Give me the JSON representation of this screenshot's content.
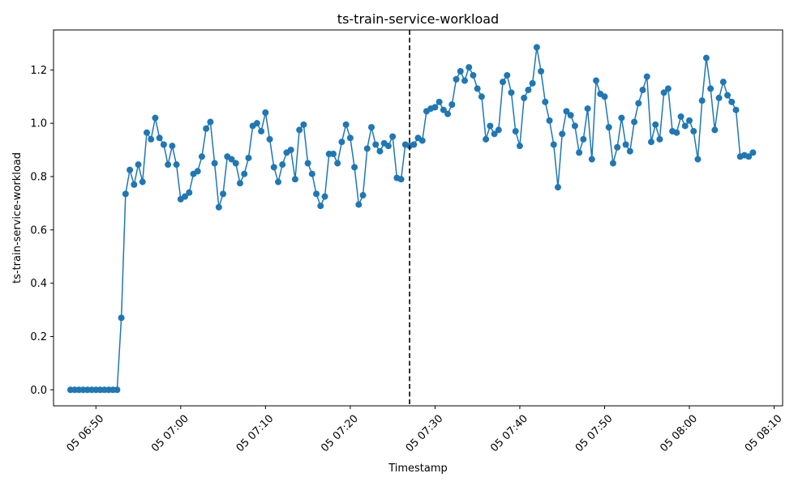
{
  "chart_data": {
    "type": "line",
    "title": "ts-train-service-workload",
    "xlabel": "Timestamp",
    "ylabel": "ts-train-service-workload",
    "x_start": "05 06:47",
    "x_step_minutes": 0.5,
    "xlim": [
      "05 06:45",
      "05 08:11"
    ],
    "ylim": [
      -0.06,
      1.35
    ],
    "yticks": [
      0.0,
      0.2,
      0.4,
      0.6,
      0.8,
      1.0,
      1.2
    ],
    "ytick_labels": [
      "0.0",
      "0.2",
      "0.4",
      "0.6",
      "0.8",
      "1.0",
      "1.2"
    ],
    "xticks": [
      "05 06:50",
      "05 07:00",
      "05 07:10",
      "05 07:20",
      "05 07:30",
      "05 07:40",
      "05 07:50",
      "05 08:00",
      "05 08:10"
    ],
    "xtick_labels": [
      "05 06:50",
      "05 07:00",
      "05 07:10",
      "05 07:20",
      "05 07:30",
      "05 07:40",
      "05 07:50",
      "05 08:00",
      "05 08:10"
    ],
    "vline": "05 07:27",
    "series": [
      {
        "name": "",
        "color": "#1f77b4",
        "marker": "circle",
        "values": [
          0,
          0,
          0,
          0,
          0,
          0,
          0,
          0,
          0,
          0,
          0,
          0,
          0.27,
          0.735,
          0.825,
          0.77,
          0.845,
          0.78,
          0.965,
          0.94,
          1.02,
          0.945,
          0.92,
          0.845,
          0.915,
          0.845,
          0.715,
          0.725,
          0.74,
          0.81,
          0.82,
          0.875,
          0.98,
          1.005,
          0.85,
          0.685,
          0.735,
          0.875,
          0.865,
          0.85,
          0.775,
          0.81,
          0.87,
          0.99,
          1.0,
          0.97,
          1.04,
          0.94,
          0.835,
          0.78,
          0.845,
          0.89,
          0.9,
          0.79,
          0.975,
          0.995,
          0.85,
          0.81,
          0.735,
          0.69,
          0.725,
          0.885,
          0.885,
          0.85,
          0.93,
          0.995,
          0.945,
          0.835,
          0.695,
          0.73,
          0.905,
          0.985,
          0.92,
          0.895,
          0.925,
          0.915,
          0.95,
          0.795,
          0.79,
          0.92,
          0.915,
          0.92,
          0.945,
          0.935,
          1.045,
          1.055,
          1.06,
          1.08,
          1.05,
          1.035,
          1.07,
          1.165,
          1.195,
          1.16,
          1.21,
          1.18,
          1.13,
          1.1,
          0.94,
          0.99,
          0.96,
          0.975,
          1.155,
          1.18,
          1.115,
          0.97,
          0.915,
          1.095,
          1.125,
          1.15,
          1.285,
          1.195,
          1.08,
          1.01,
          0.92,
          0.76,
          0.96,
          1.045,
          1.03,
          0.99,
          0.89,
          0.94,
          1.055,
          0.865,
          1.16,
          1.11,
          1.1,
          0.985,
          0.85,
          0.91,
          1.02,
          0.92,
          0.895,
          1.005,
          1.075,
          1.125,
          1.175,
          0.93,
          0.995,
          0.94,
          1.115,
          1.13,
          0.97,
          0.965,
          1.025,
          0.99,
          1.01,
          0.97,
          0.865,
          1.085,
          1.245,
          1.13,
          0.975,
          1.095,
          1.155,
          1.105,
          1.08,
          1.05,
          0.875,
          0.88,
          0.875,
          0.89
        ]
      }
    ],
    "grid": false,
    "legend": "none"
  }
}
